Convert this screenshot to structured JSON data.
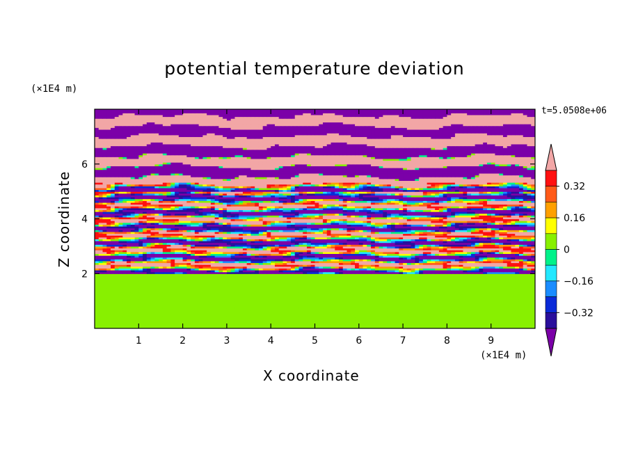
{
  "chart_data": {
    "type": "heatmap",
    "title": "potential temperature deviation",
    "xlabel": "X coordinate",
    "ylabel": "Z coordinate",
    "x_unit": "(×1E4 m)",
    "z_unit": "(×1E4 m)",
    "time_label": "t=5.0508e+06",
    "xlim": [
      0,
      10
    ],
    "ylim": [
      0,
      8
    ],
    "x_ticks": [
      "1",
      "2",
      "3",
      "4",
      "5",
      "6",
      "7",
      "8",
      "9"
    ],
    "y_ticks": [
      "2",
      "4",
      "6"
    ],
    "colorbar": {
      "levels": [
        -0.4,
        -0.32,
        -0.24,
        -0.16,
        -0.08,
        0,
        0.08,
        0.16,
        0.24,
        0.32,
        0.4
      ],
      "tick_labels": [
        "0.32",
        "0.16",
        "0",
        "−0.16",
        "−0.32"
      ],
      "colors": [
        "#7b00a8",
        "#2a0f9c",
        "#0a2ad8",
        "#1a8cff",
        "#22e8ff",
        "#00f28a",
        "#88f000",
        "#ffff00",
        "#ffa000",
        "#ff5a18",
        "#ff1010",
        "#f2a6a6"
      ],
      "extend": "both"
    },
    "regions": [
      {
        "z_range": [
          0,
          2
        ],
        "description_values": [
          0,
          0.08
        ]
      },
      {
        "z_range": [
          2,
          5
        ],
        "description_values": [
          -0.4,
          0.4
        ]
      },
      {
        "z_range": [
          5,
          8
        ],
        "description_values": [
          -0.4,
          0.4
        ]
      }
    ]
  }
}
